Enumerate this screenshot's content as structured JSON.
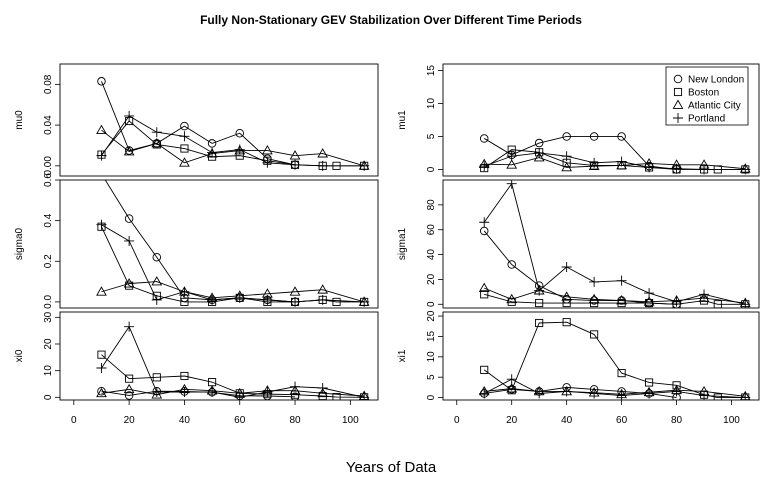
{
  "figure": {
    "title": "Fully Non-Stationary GEV Stabilization Over Different Time Periods",
    "xlabel": "Years of Data",
    "x_ticks": [
      0,
      20,
      40,
      60,
      80,
      100
    ],
    "xlim": [
      -5,
      110
    ]
  },
  "legend": {
    "entries": [
      {
        "name": "New London",
        "symbol": "circle"
      },
      {
        "name": "Boston",
        "symbol": "square"
      },
      {
        "name": "Atlantic City",
        "symbol": "triangle"
      },
      {
        "name": "Portland",
        "symbol": "plus"
      }
    ],
    "position": "top-right of mu1 panel"
  },
  "chart_data": [
    {
      "type": "line",
      "ylabel": "mu0",
      "ylim": [
        -0.01,
        0.1
      ],
      "yticks": [
        "0.00",
        "0.04",
        "0.08"
      ],
      "ytick_values": [
        0,
        0.04,
        0.08
      ],
      "series": [
        {
          "name": "New London",
          "x": [
            10,
            20,
            30,
            40,
            50,
            60,
            70,
            80
          ],
          "values": [
            0.083,
            0.015,
            0.022,
            0.039,
            0.022,
            0.032,
            0.007,
            0.001
          ]
        },
        {
          "name": "Boston",
          "x": [
            10,
            20,
            30,
            40,
            50,
            60,
            70,
            80,
            90,
            95,
            105
          ],
          "values": [
            0.011,
            0.044,
            0.021,
            0.017,
            0.009,
            0.01,
            0.005,
            0.001,
            0.0,
            0.0,
            0.0
          ]
        },
        {
          "name": "Atlantic City",
          "x": [
            10,
            20,
            30,
            40,
            50,
            60,
            70,
            80,
            90,
            105
          ],
          "values": [
            0.035,
            0.014,
            0.022,
            0.003,
            0.012,
            0.015,
            0.015,
            0.01,
            0.012,
            0.0
          ]
        },
        {
          "name": "Portland",
          "x": [
            10,
            20,
            30,
            40,
            50,
            60,
            70,
            80,
            90,
            105
          ],
          "values": [
            0.01,
            0.049,
            0.033,
            0.029,
            0.013,
            0.016,
            0.003,
            0.001,
            0.0,
            0.0
          ]
        }
      ]
    },
    {
      "type": "line",
      "ylabel": "mu1",
      "ylim": [
        -1,
        16
      ],
      "yticks": [
        "0",
        "5",
        "10",
        "15"
      ],
      "ytick_values": [
        0,
        5,
        10,
        15
      ],
      "series": [
        {
          "name": "New London",
          "x": [
            10,
            20,
            30,
            40,
            50,
            60,
            70,
            80
          ],
          "values": [
            4.7,
            2.2,
            4.0,
            5.0,
            5.0,
            5.0,
            0.5,
            0.0
          ]
        },
        {
          "name": "Boston",
          "x": [
            10,
            20,
            30,
            40,
            50,
            60,
            70,
            80,
            90,
            95,
            105
          ],
          "values": [
            0.2,
            3.0,
            2.6,
            1.0,
            0.6,
            0.6,
            0.3,
            0.0,
            0.0,
            0.0,
            0.0
          ]
        },
        {
          "name": "Atlantic City",
          "x": [
            10,
            20,
            30,
            40,
            50,
            60,
            70,
            80,
            90,
            105
          ],
          "values": [
            0.8,
            0.7,
            1.8,
            0.3,
            0.5,
            0.6,
            0.9,
            0.7,
            0.7,
            0.1
          ]
        },
        {
          "name": "Portland",
          "x": [
            10,
            20,
            30,
            40,
            50,
            60,
            70,
            80,
            90,
            105
          ],
          "values": [
            0.5,
            2.0,
            2.5,
            2.0,
            1.0,
            1.2,
            0.3,
            0.1,
            0.0,
            0.0
          ]
        }
      ]
    },
    {
      "type": "line",
      "ylabel": "sigma0",
      "ylim": [
        -0.03,
        0.6
      ],
      "yticks": [
        "0.0",
        "0.2",
        "0.4",
        "0.6"
      ],
      "ytick_values": [
        0,
        0.2,
        0.4,
        0.6
      ],
      "series": [
        {
          "name": "New London",
          "x": [
            10,
            20,
            30,
            40,
            50,
            60,
            70,
            80
          ],
          "values": [
            0.63,
            0.41,
            0.22,
            0.02,
            0.01,
            0.02,
            0.01,
            0.0
          ]
        },
        {
          "name": "Boston",
          "x": [
            10,
            20,
            30,
            40,
            50,
            60,
            70,
            80,
            90,
            95,
            105
          ],
          "values": [
            0.37,
            0.08,
            0.03,
            0.0,
            0.0,
            0.02,
            0.0,
            0.0,
            0.01,
            0.0,
            0.0
          ]
        },
        {
          "name": "Atlantic City",
          "x": [
            10,
            20,
            30,
            40,
            50,
            60,
            70,
            80,
            90,
            105
          ],
          "values": [
            0.05,
            0.09,
            0.1,
            0.05,
            0.02,
            0.03,
            0.04,
            0.05,
            0.06,
            0.0
          ]
        },
        {
          "name": "Portland",
          "x": [
            10,
            20,
            30,
            40,
            50,
            60,
            70,
            80,
            90,
            105
          ],
          "values": [
            0.38,
            0.3,
            0.01,
            0.05,
            0.01,
            0.02,
            0.01,
            0.0,
            0.01,
            0.0
          ]
        }
      ]
    },
    {
      "type": "line",
      "ylabel": "sigma1",
      "ylim": [
        -3,
        100
      ],
      "yticks": [
        "0",
        "20",
        "40",
        "60",
        "80"
      ],
      "ytick_values": [
        0,
        20,
        40,
        60,
        80
      ],
      "series": [
        {
          "name": "New London",
          "x": [
            10,
            20,
            30,
            40,
            50,
            60,
            70,
            80
          ],
          "values": [
            59,
            32,
            15,
            4,
            3,
            3,
            1,
            0
          ]
        },
        {
          "name": "Boston",
          "x": [
            10,
            20,
            30,
            40,
            50,
            60,
            70,
            80,
            90,
            95,
            105
          ],
          "values": [
            8,
            2,
            1,
            1,
            1,
            1,
            1,
            0,
            3,
            0,
            0
          ]
        },
        {
          "name": "Atlantic City",
          "x": [
            10,
            20,
            30,
            40,
            50,
            60,
            70,
            80,
            90,
            105
          ],
          "values": [
            13,
            4,
            11,
            6,
            4,
            3,
            2,
            3,
            5,
            1
          ]
        },
        {
          "name": "Portland",
          "x": [
            10,
            20,
            30,
            40,
            50,
            60,
            70,
            80,
            90,
            105
          ],
          "values": [
            66,
            97,
            11,
            30,
            18,
            19,
            9,
            2,
            8,
            0
          ]
        }
      ]
    },
    {
      "type": "line",
      "ylabel": "xi0",
      "ylim": [
        -1,
        32
      ],
      "yticks": [
        "0",
        "10",
        "20",
        "30"
      ],
      "ytick_values": [
        0,
        10,
        20,
        30
      ],
      "series": [
        {
          "name": "New London",
          "x": [
            10,
            20,
            30,
            40,
            50,
            60,
            70,
            80
          ],
          "values": [
            2.3,
            0.7,
            2.3,
            2.2,
            1.9,
            0.6,
            0.5,
            0.2
          ]
        },
        {
          "name": "Boston",
          "x": [
            10,
            20,
            30,
            40,
            50,
            60,
            70,
            80,
            90,
            95,
            105
          ],
          "values": [
            16,
            7,
            7.5,
            8,
            5.7,
            1.5,
            1.2,
            1.0,
            0.5,
            0.1,
            0.0
          ]
        },
        {
          "name": "Atlantic City",
          "x": [
            10,
            20,
            30,
            40,
            50,
            60,
            70,
            80,
            90,
            105
          ],
          "values": [
            1.5,
            3,
            1,
            3,
            2.5,
            1.5,
            2.5,
            2.5,
            1.5,
            0.5
          ]
        },
        {
          "name": "Portland",
          "x": [
            10,
            20,
            30,
            40,
            50,
            60,
            70,
            80,
            90,
            105
          ],
          "values": [
            11,
            26.5,
            2,
            2,
            2,
            0,
            2,
            4,
            3.5,
            0
          ]
        }
      ]
    },
    {
      "type": "line",
      "ylabel": "xi1",
      "ylim": [
        -0.6,
        21
      ],
      "yticks": [
        "0",
        "5",
        "10",
        "15",
        "20"
      ],
      "ytick_values": [
        0,
        5,
        10,
        15,
        20
      ],
      "series": [
        {
          "name": "New London",
          "x": [
            10,
            20,
            30,
            40,
            50,
            60,
            70,
            80
          ],
          "values": [
            1.0,
            2.0,
            1.5,
            2.5,
            2.0,
            1.5,
            1.0,
            0.0
          ]
        },
        {
          "name": "Boston",
          "x": [
            10,
            20,
            30,
            40,
            50,
            60,
            70,
            80,
            90,
            95,
            105
          ],
          "values": [
            6.8,
            1.8,
            18.3,
            18.5,
            15.5,
            6.0,
            3.7,
            3.0,
            0.7,
            0.0,
            0.0
          ]
        },
        {
          "name": "Atlantic City",
          "x": [
            10,
            20,
            30,
            40,
            50,
            60,
            70,
            80,
            90,
            105
          ],
          "values": [
            1.5,
            2.2,
            1.5,
            1.5,
            1.2,
            0.8,
            1.3,
            1.8,
            1.5,
            0.3
          ]
        },
        {
          "name": "Portland",
          "x": [
            10,
            20,
            30,
            40,
            50,
            60,
            70,
            80,
            90,
            105
          ],
          "values": [
            1.0,
            4.5,
            1.0,
            1.5,
            1.0,
            0.5,
            1.0,
            1.5,
            0.5,
            0.0
          ]
        }
      ]
    }
  ]
}
